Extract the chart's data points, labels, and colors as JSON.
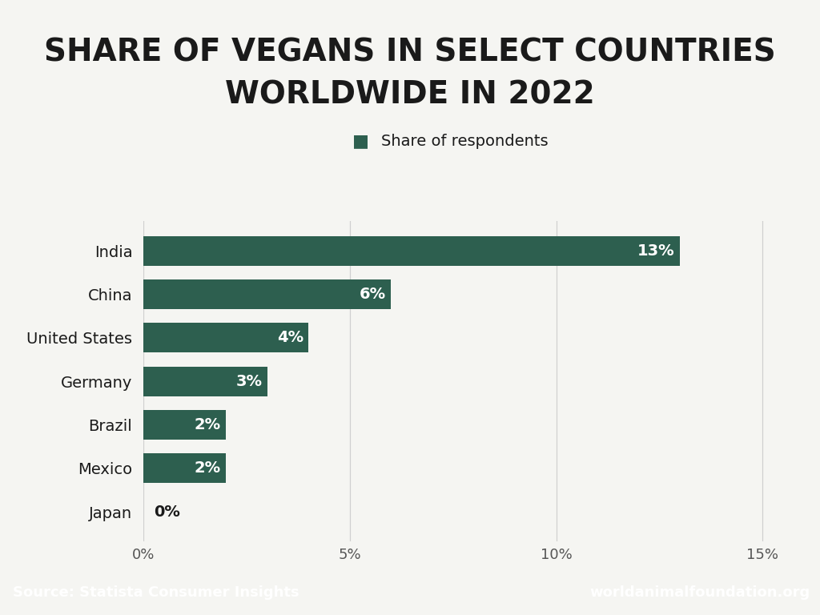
{
  "title_line1": "SHARE OF VEGANS IN SELECT COUNTRIES",
  "title_line2": "WORLDWIDE IN 2022",
  "legend_label": "Share of respondents",
  "countries": [
    "Japan",
    "Mexico",
    "Brazil",
    "Germany",
    "United States",
    "China",
    "India"
  ],
  "values": [
    0,
    2,
    2,
    3,
    4,
    6,
    13
  ],
  "bar_color": "#2d5f4f",
  "bar_labels": [
    "0%",
    "2%",
    "2%",
    "3%",
    "4%",
    "6%",
    "13%"
  ],
  "x_ticks": [
    0,
    5,
    10,
    15
  ],
  "x_tick_labels": [
    "0%",
    "5%",
    "10%",
    "15%"
  ],
  "xlim": [
    0,
    15.5
  ],
  "background_color": "#f5f5f2",
  "chart_bg_color": "#f5f5f2",
  "footer_bg_color": "#2d5f4f",
  "footer_left": "Source: Statista Consumer Insights",
  "footer_right": "worldanimalfoundation.org",
  "title_fontsize": 28,
  "bar_label_fontsize": 14,
  "country_label_fontsize": 14,
  "axis_tick_fontsize": 13,
  "legend_fontsize": 14,
  "footer_fontsize": 13
}
